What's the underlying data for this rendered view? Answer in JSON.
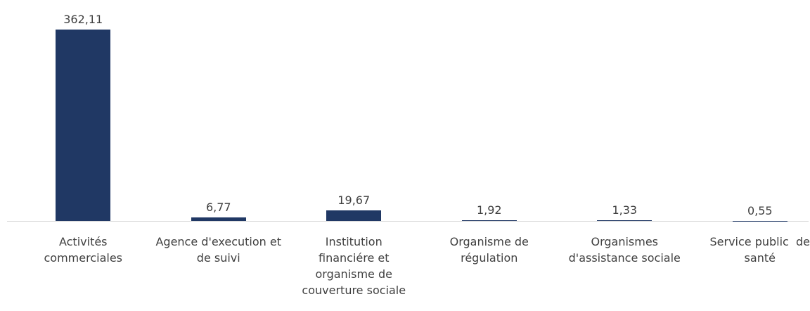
{
  "chart_data": {
    "type": "bar",
    "categories": [
      "Activités commerciales",
      "Agence d'execution et de suivi",
      "Institution financiére et organisme de couverture sociale",
      "Organisme de régulation",
      "Organismes d'assistance sociale",
      "Service public  de santé"
    ],
    "values": [
      362.11,
      6.77,
      19.67,
      1.92,
      1.33,
      0.55
    ],
    "value_labels": [
      "362,11",
      "6,77",
      "19,67",
      "1,92",
      "1,33",
      "0,55"
    ],
    "color": "#203864"
  }
}
